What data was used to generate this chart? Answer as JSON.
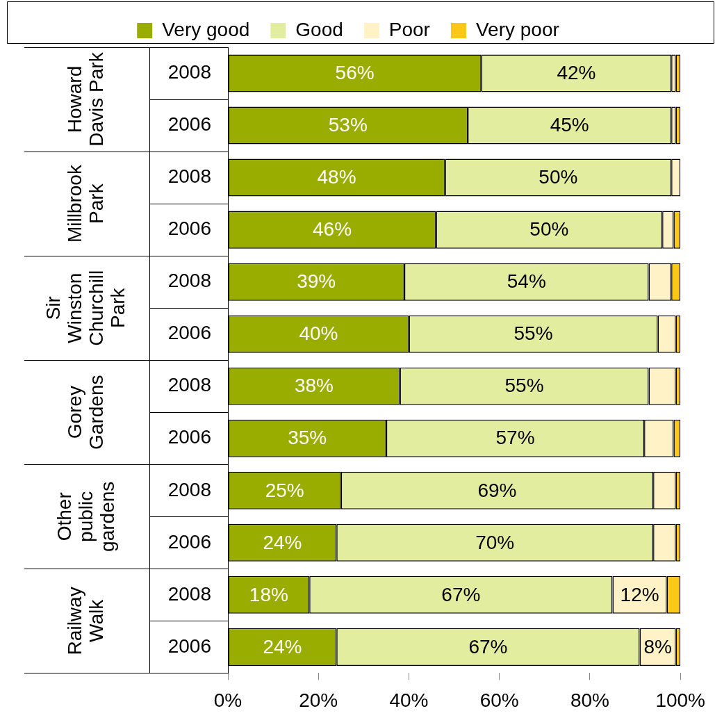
{
  "chart_data": {
    "type": "bar",
    "orientation": "horizontal",
    "stacked": true,
    "categories": [
      "2008",
      "2006",
      "2008",
      "2006",
      "2008",
      "2006",
      "2008",
      "2006",
      "2008",
      "2006",
      "2008",
      "2006"
    ],
    "annotations": [
      "Howard Davis Park",
      "Millbrook Park",
      "Sir Winston Churchill Park",
      "Gorey Gardens",
      "Other public gardens",
      "Railway Walk"
    ],
    "series": [
      {
        "name": "Very good",
        "color": "#99ad00",
        "values": [
          56,
          53,
          48,
          46,
          39,
          40,
          38,
          35,
          25,
          24,
          18,
          24
        ],
        "value_labels": [
          "56%",
          "53%",
          "48%",
          "46%",
          "39%",
          "40%",
          "38%",
          "35%",
          "25%",
          "24%",
          "18%",
          "24%"
        ]
      },
      {
        "name": "Good",
        "color": "#e3ed9f",
        "values": [
          42,
          45,
          50,
          50,
          54,
          55,
          55,
          57,
          69,
          70,
          67,
          67
        ],
        "value_labels": [
          "42%",
          "45%",
          "50%",
          "50%",
          "54%",
          "55%",
          "55%",
          "57%",
          "69%",
          "70%",
          "67%",
          "67%"
        ]
      },
      {
        "name": "Poor",
        "color": "#fff2c6",
        "values": [
          1,
          1,
          2,
          2.5,
          5,
          4,
          6,
          6.5,
          5,
          5,
          12,
          8
        ],
        "value_labels": [
          null,
          null,
          null,
          null,
          null,
          null,
          null,
          null,
          null,
          null,
          "12%",
          "8%"
        ]
      },
      {
        "name": "Very poor",
        "color": "#fcc817",
        "values": [
          1,
          1,
          0,
          1.5,
          2,
          1,
          1,
          1.5,
          1,
          1,
          3,
          1
        ]
      }
    ],
    "xlim": [
      0,
      100
    ],
    "xticks": [
      {
        "value": 0,
        "label": "0%"
      },
      {
        "value": 20,
        "label": "20%"
      },
      {
        "value": 40,
        "label": "40%"
      },
      {
        "value": 60,
        "label": "60%"
      },
      {
        "value": 80,
        "label": "80%"
      },
      {
        "value": 100,
        "label": "100%"
      }
    ],
    "legend": "top",
    "grid": false
  }
}
